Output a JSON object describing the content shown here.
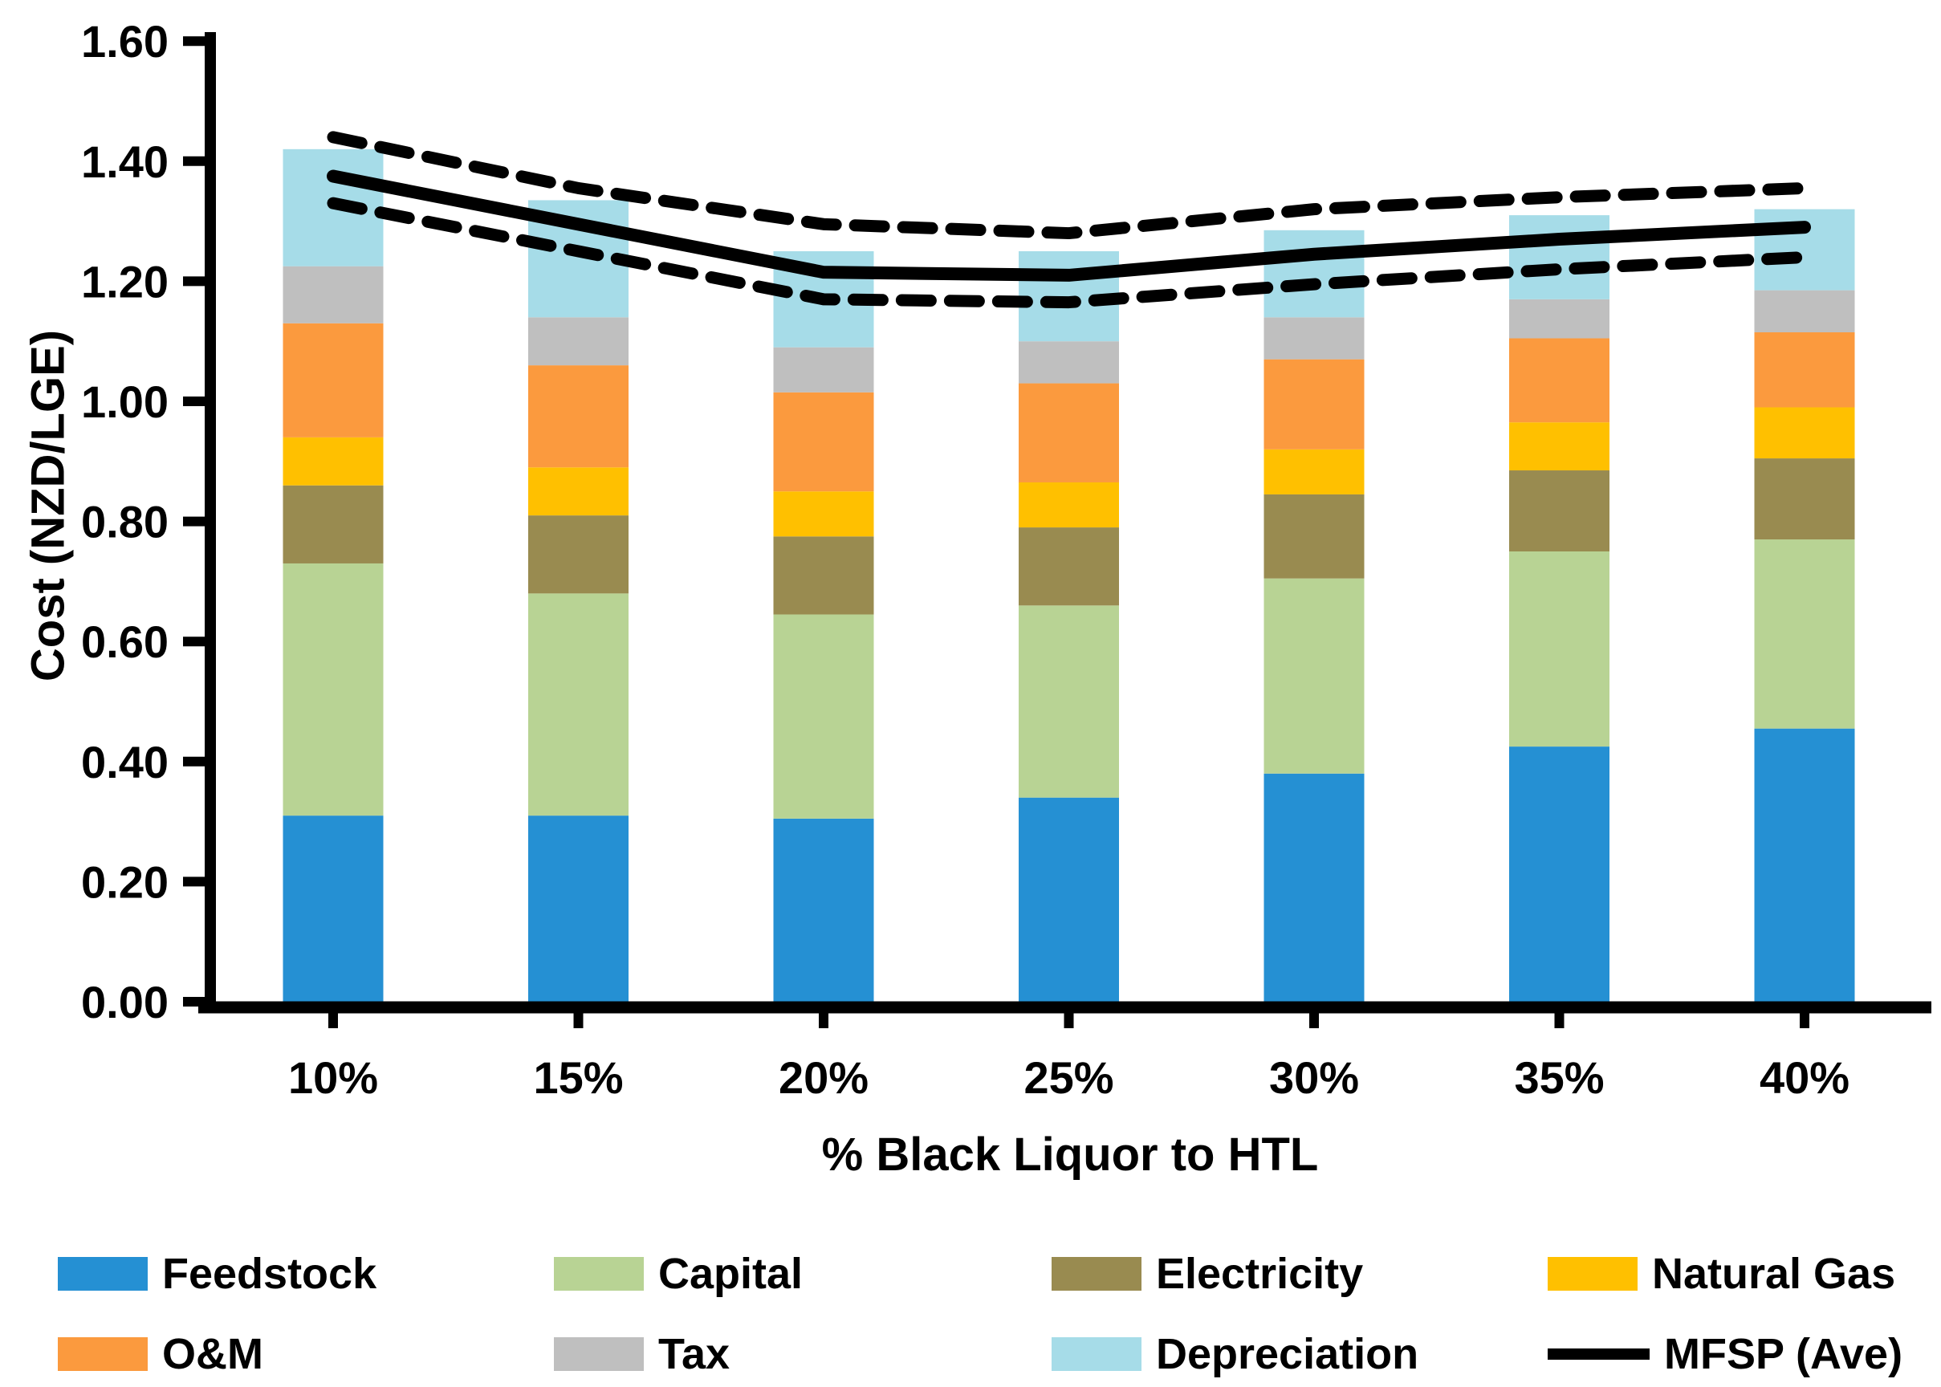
{
  "page": {
    "background": "#ffffff"
  },
  "chart_data": {
    "type": "bar",
    "subtype": "stacked-bars-with-line-overlay",
    "title": "",
    "xlabel": "% Black Liquor to HTL",
    "ylabel": "Cost (NZD/LGE)",
    "categories": [
      "10%",
      "15%",
      "20%",
      "25%",
      "30%",
      "35%",
      "40%"
    ],
    "series": [
      {
        "name": "Feedstock",
        "color": "#2590d3",
        "values": [
          0.31,
          0.31,
          0.305,
          0.34,
          0.38,
          0.425,
          0.455
        ]
      },
      {
        "name": "Capital",
        "color": "#b8d394",
        "values": [
          0.42,
          0.37,
          0.34,
          0.32,
          0.325,
          0.325,
          0.315
        ]
      },
      {
        "name": "Electricity",
        "color": "#998b50",
        "values": [
          0.13,
          0.13,
          0.13,
          0.13,
          0.14,
          0.135,
          0.135
        ]
      },
      {
        "name": "Natural Gas",
        "color": "#ffc000",
        "values": [
          0.08,
          0.08,
          0.075,
          0.075,
          0.075,
          0.08,
          0.085
        ]
      },
      {
        "name": "O&M",
        "color": "#fb9a3e",
        "values": [
          0.19,
          0.17,
          0.165,
          0.165,
          0.15,
          0.14,
          0.125
        ]
      },
      {
        "name": "Tax",
        "color": "#bfbfbf",
        "values": [
          0.095,
          0.08,
          0.075,
          0.07,
          0.07,
          0.065,
          0.07
        ]
      },
      {
        "name": "Depreciation",
        "color": "#a6dce8",
        "values": [
          0.195,
          0.195,
          0.16,
          0.15,
          0.145,
          0.14,
          0.135
        ]
      }
    ],
    "stack_totals": [
      1.42,
      1.335,
      1.25,
      1.25,
      1.285,
      1.31,
      1.32
    ],
    "line_series": [
      {
        "name": "MFSP (Ave)",
        "style": "solid",
        "color": "#000000",
        "values": [
          1.375,
          1.295,
          1.215,
          1.21,
          1.245,
          1.27,
          1.29
        ]
      },
      {
        "name": "MFSP upper bound (dashed)",
        "style": "dashed",
        "color": "#000000",
        "values": [
          1.44,
          1.355,
          1.295,
          1.28,
          1.32,
          1.34,
          1.355
        ]
      },
      {
        "name": "MFSP lower bound (dashed)",
        "style": "dashed",
        "color": "#000000",
        "values": [
          1.33,
          1.25,
          1.17,
          1.165,
          1.195,
          1.22,
          1.24
        ]
      }
    ],
    "ylim": [
      0,
      1.6
    ],
    "y_tick_step": 0.2,
    "y_tick_labels": [
      "0.00",
      "0.20",
      "0.40",
      "0.60",
      "0.80",
      "1.00",
      "1.20",
      "1.40",
      "1.60"
    ],
    "y_tick_values": [
      0,
      0.2,
      0.4,
      0.6,
      0.8,
      1.0,
      1.2,
      1.4,
      1.6
    ],
    "grid": "off",
    "legend_position": "bottom"
  },
  "legend": {
    "rows": 2,
    "columns": 4,
    "items": [
      {
        "label": "Feedstock",
        "swatch": "box",
        "color": "#2590d3",
        "row": 0,
        "col": 0
      },
      {
        "label": "Capital",
        "swatch": "box",
        "color": "#b8d394",
        "row": 0,
        "col": 1
      },
      {
        "label": "Electricity",
        "swatch": "box",
        "color": "#998b50",
        "row": 0,
        "col": 2
      },
      {
        "label": "Natural Gas",
        "swatch": "box",
        "color": "#ffc000",
        "row": 0,
        "col": 3
      },
      {
        "label": "O&M",
        "swatch": "box",
        "color": "#fb9a3e",
        "row": 1,
        "col": 0
      },
      {
        "label": "Tax",
        "swatch": "box",
        "color": "#bfbfbf",
        "row": 1,
        "col": 1
      },
      {
        "label": "Depreciation",
        "swatch": "box",
        "color": "#a6dce8",
        "row": 1,
        "col": 2
      },
      {
        "label": "MFSP (Ave)",
        "swatch": "line",
        "color": "#000000",
        "row": 1,
        "col": 3
      }
    ]
  }
}
